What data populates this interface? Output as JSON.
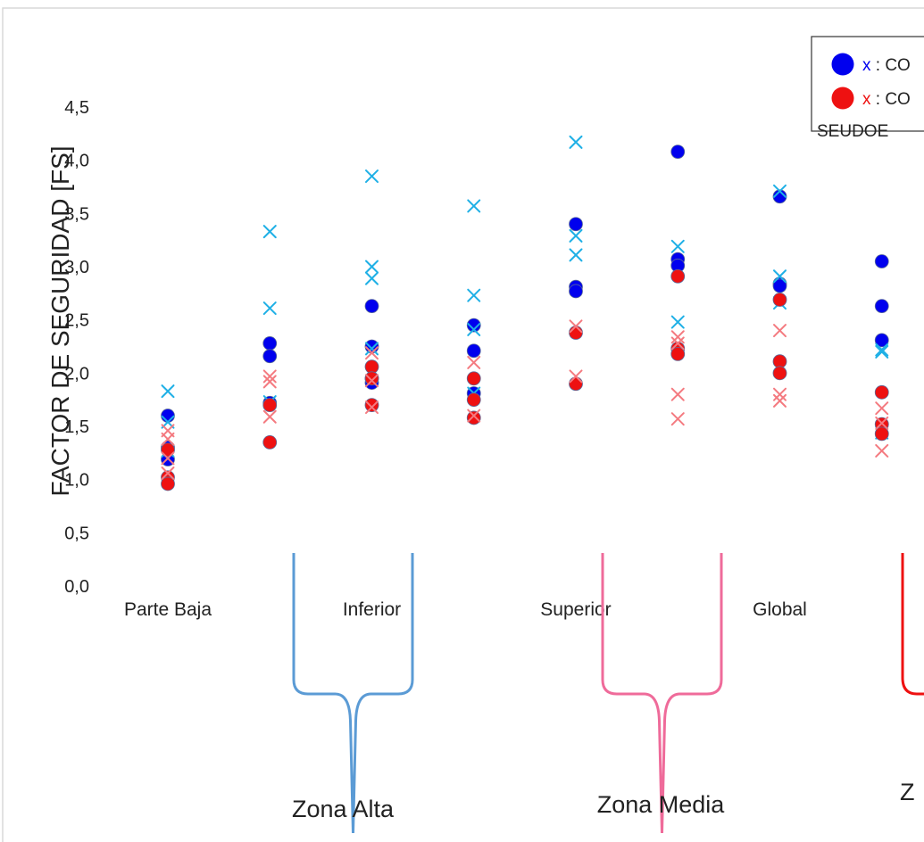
{
  "chart_data": {
    "type": "scatter",
    "ylabel": "FACTOR DE SEGURIDAD [FS]",
    "ylim": [
      0,
      4.5
    ],
    "yticks": [
      "0,0",
      "0,5",
      "1,0",
      "1,5",
      "2,0",
      "2,5",
      "3,0",
      "3,5",
      "4,0",
      "4,5"
    ],
    "categories": [
      "Parte Baja",
      "Inferior",
      "Superior",
      "Global"
    ],
    "x_positions": [
      1,
      1.5,
      2,
      2.5,
      3,
      3.5,
      4,
      4.5,
      5,
      5.5
    ],
    "series": [
      {
        "marker": "circle",
        "color": "#0000ee",
        "points": [
          [
            1,
            1.6
          ],
          [
            1,
            1.3
          ],
          [
            1,
            1.19
          ],
          [
            1.5,
            2.28
          ],
          [
            1.5,
            2.16
          ],
          [
            1.5,
            1.72
          ],
          [
            2,
            2.63
          ],
          [
            2,
            2.25
          ],
          [
            2,
            1.95
          ],
          [
            2,
            1.91
          ],
          [
            2.5,
            2.45
          ],
          [
            2.5,
            2.21
          ],
          [
            2.5,
            1.81
          ],
          [
            3,
            3.4
          ],
          [
            3,
            2.81
          ],
          [
            3,
            2.77
          ],
          [
            3.5,
            4.08
          ],
          [
            3.5,
            3.07
          ],
          [
            3.5,
            3.01
          ],
          [
            4,
            3.66
          ],
          [
            4,
            2.84
          ],
          [
            4,
            2.82
          ],
          [
            4.5,
            3.05
          ],
          [
            4.5,
            2.63
          ],
          [
            4.5,
            2.31
          ]
        ]
      },
      {
        "marker": "x",
        "color": "#1fb0e6",
        "points": [
          [
            1,
            1.83
          ],
          [
            1,
            1.54
          ],
          [
            1,
            1.27
          ],
          [
            1.5,
            3.33
          ],
          [
            1.5,
            2.61
          ],
          [
            1.5,
            1.73
          ],
          [
            2,
            3.85
          ],
          [
            2,
            3.0
          ],
          [
            2,
            2.89
          ],
          [
            2,
            2.23
          ],
          [
            2.5,
            3.57
          ],
          [
            2.5,
            2.73
          ],
          [
            2.5,
            2.41
          ],
          [
            2.5,
            1.81
          ],
          [
            3,
            4.17
          ],
          [
            3,
            3.29
          ],
          [
            3,
            3.11
          ],
          [
            3.5,
            3.19
          ],
          [
            3.5,
            2.48
          ],
          [
            4,
            3.71
          ],
          [
            4,
            2.91
          ],
          [
            4,
            2.66
          ],
          [
            4.5,
            2.2
          ],
          [
            4.5,
            2.22
          ],
          [
            4.5,
            1.44
          ]
        ]
      },
      {
        "marker": "circle",
        "color": "#ee1111",
        "points": [
          [
            1,
            1.28
          ],
          [
            1,
            1.02
          ],
          [
            1,
            0.96
          ],
          [
            1.5,
            1.7
          ],
          [
            1.5,
            1.35
          ],
          [
            2,
            2.06
          ],
          [
            2,
            1.95
          ],
          [
            2,
            1.7
          ],
          [
            2.5,
            1.95
          ],
          [
            2.5,
            1.75
          ],
          [
            2.5,
            1.58
          ],
          [
            3,
            2.38
          ],
          [
            3,
            1.9
          ],
          [
            3.5,
            2.91
          ],
          [
            3.5,
            2.23
          ],
          [
            3.5,
            2.18
          ],
          [
            4,
            2.69
          ],
          [
            4,
            2.11
          ],
          [
            4,
            2.0
          ],
          [
            4.5,
            1.82
          ],
          [
            4.5,
            1.52
          ],
          [
            4.5,
            1.43
          ]
        ]
      },
      {
        "marker": "x",
        "color": "#f47a80",
        "points": [
          [
            1,
            1.46
          ],
          [
            1,
            1.38
          ],
          [
            1,
            1.2
          ],
          [
            1,
            1.06
          ],
          [
            1.5,
            1.97
          ],
          [
            1.5,
            1.92
          ],
          [
            1.5,
            1.59
          ],
          [
            2,
            2.19
          ],
          [
            2,
            1.93
          ],
          [
            2,
            1.68
          ],
          [
            2.5,
            2.1
          ],
          [
            2.5,
            1.6
          ],
          [
            3,
            2.44
          ],
          [
            3,
            1.97
          ],
          [
            3.5,
            2.34
          ],
          [
            3.5,
            2.28
          ],
          [
            3.5,
            1.8
          ],
          [
            3.5,
            1.57
          ],
          [
            4,
            2.4
          ],
          [
            4,
            1.8
          ],
          [
            4,
            1.74
          ],
          [
            4.5,
            1.67
          ],
          [
            4.5,
            1.53
          ],
          [
            4.5,
            1.27
          ]
        ]
      }
    ],
    "legend": {
      "placement": "top-right",
      "items": [
        {
          "color": "#0000ee",
          "x_label": "x",
          "text": ": CO"
        },
        {
          "color": "#ee1111",
          "x_label": "x",
          "text": ": CO"
        }
      ],
      "overflow_text": "SEUDOE"
    },
    "brackets": [
      {
        "label": "Zona Alta",
        "color": "#5b9bd5"
      },
      {
        "label": "Zona Media",
        "color": "#ef6b9a"
      },
      {
        "label": "Z",
        "color": "#ee1111"
      }
    ]
  }
}
